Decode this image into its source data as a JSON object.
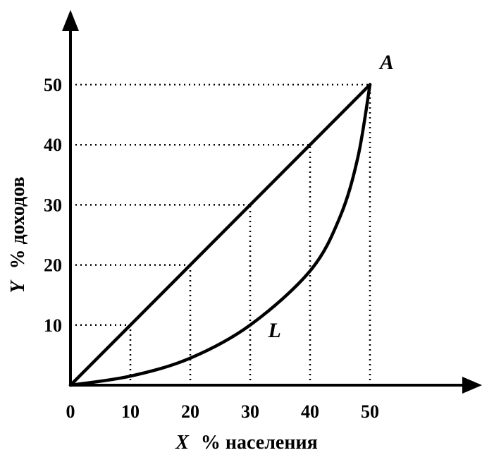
{
  "chart_data": {
    "type": "line",
    "title": "",
    "xlabel_var": "X",
    "xlabel_text": "% населения",
    "ylabel_var": "Y",
    "ylabel_text": "% доходов",
    "xlim": [
      0,
      50
    ],
    "ylim": [
      0,
      50
    ],
    "origin_label": "0",
    "x_ticks": [
      10,
      20,
      30,
      40,
      50
    ],
    "y_ticks": [
      10,
      20,
      30,
      40,
      50
    ],
    "grid": "dotted guide lines to points",
    "series": [
      {
        "label": "",
        "style": "equality-line",
        "points": [
          [
            0,
            0
          ],
          [
            10,
            10
          ],
          [
            20,
            20
          ],
          [
            30,
            30
          ],
          [
            40,
            40
          ],
          [
            50,
            50
          ]
        ]
      },
      {
        "label": "L",
        "style": "lorenz-curve",
        "points": [
          [
            0,
            0
          ],
          [
            10,
            1.5
          ],
          [
            20,
            4.5
          ],
          [
            30,
            10
          ],
          [
            40,
            19
          ],
          [
            45,
            28
          ],
          [
            48,
            38
          ],
          [
            50,
            50
          ]
        ]
      }
    ],
    "annotations": [
      {
        "text": "A",
        "x": 50,
        "y": 50
      },
      {
        "text": "L",
        "x": 33,
        "y": 8
      }
    ]
  }
}
